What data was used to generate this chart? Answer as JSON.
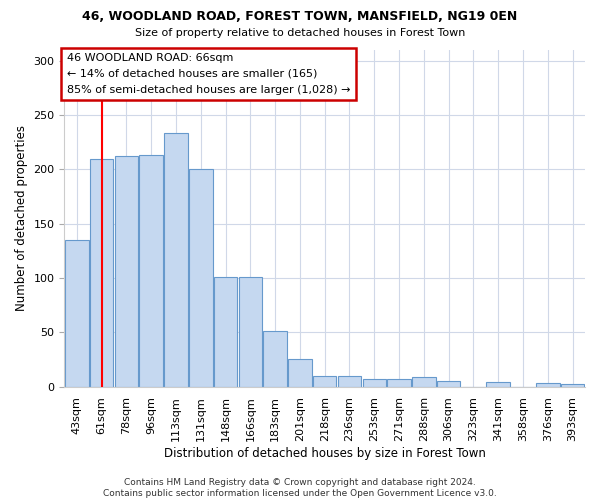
{
  "title1": "46, WOODLAND ROAD, FOREST TOWN, MANSFIELD, NG19 0EN",
  "title2": "Size of property relative to detached houses in Forest Town",
  "xlabel": "Distribution of detached houses by size in Forest Town",
  "ylabel": "Number of detached properties",
  "categories": [
    "43sqm",
    "61sqm",
    "78sqm",
    "96sqm",
    "113sqm",
    "131sqm",
    "148sqm",
    "166sqm",
    "183sqm",
    "201sqm",
    "218sqm",
    "236sqm",
    "253sqm",
    "271sqm",
    "288sqm",
    "306sqm",
    "323sqm",
    "341sqm",
    "358sqm",
    "376sqm",
    "393sqm"
  ],
  "values": [
    135,
    210,
    212,
    213,
    234,
    200,
    101,
    101,
    51,
    25,
    10,
    10,
    7,
    7,
    9,
    5,
    0,
    4,
    0,
    3,
    2
  ],
  "bar_color": "#c5d8f0",
  "bar_edge_color": "#6699cc",
  "red_line_x": 1,
  "annotation_text": "46 WOODLAND ROAD: 66sqm\n← 14% of detached houses are smaller (165)\n85% of semi-detached houses are larger (1,028) →",
  "annotation_box_color": "#ffffff",
  "annotation_box_edge": "#cc0000",
  "footer": "Contains HM Land Registry data © Crown copyright and database right 2024.\nContains public sector information licensed under the Open Government Licence v3.0.",
  "ylim": [
    0,
    310
  ],
  "yticks": [
    0,
    50,
    100,
    150,
    200,
    250,
    300
  ],
  "background_color": "#ffffff",
  "plot_bg_color": "#ffffff",
  "grid_color": "#d0d8e8"
}
